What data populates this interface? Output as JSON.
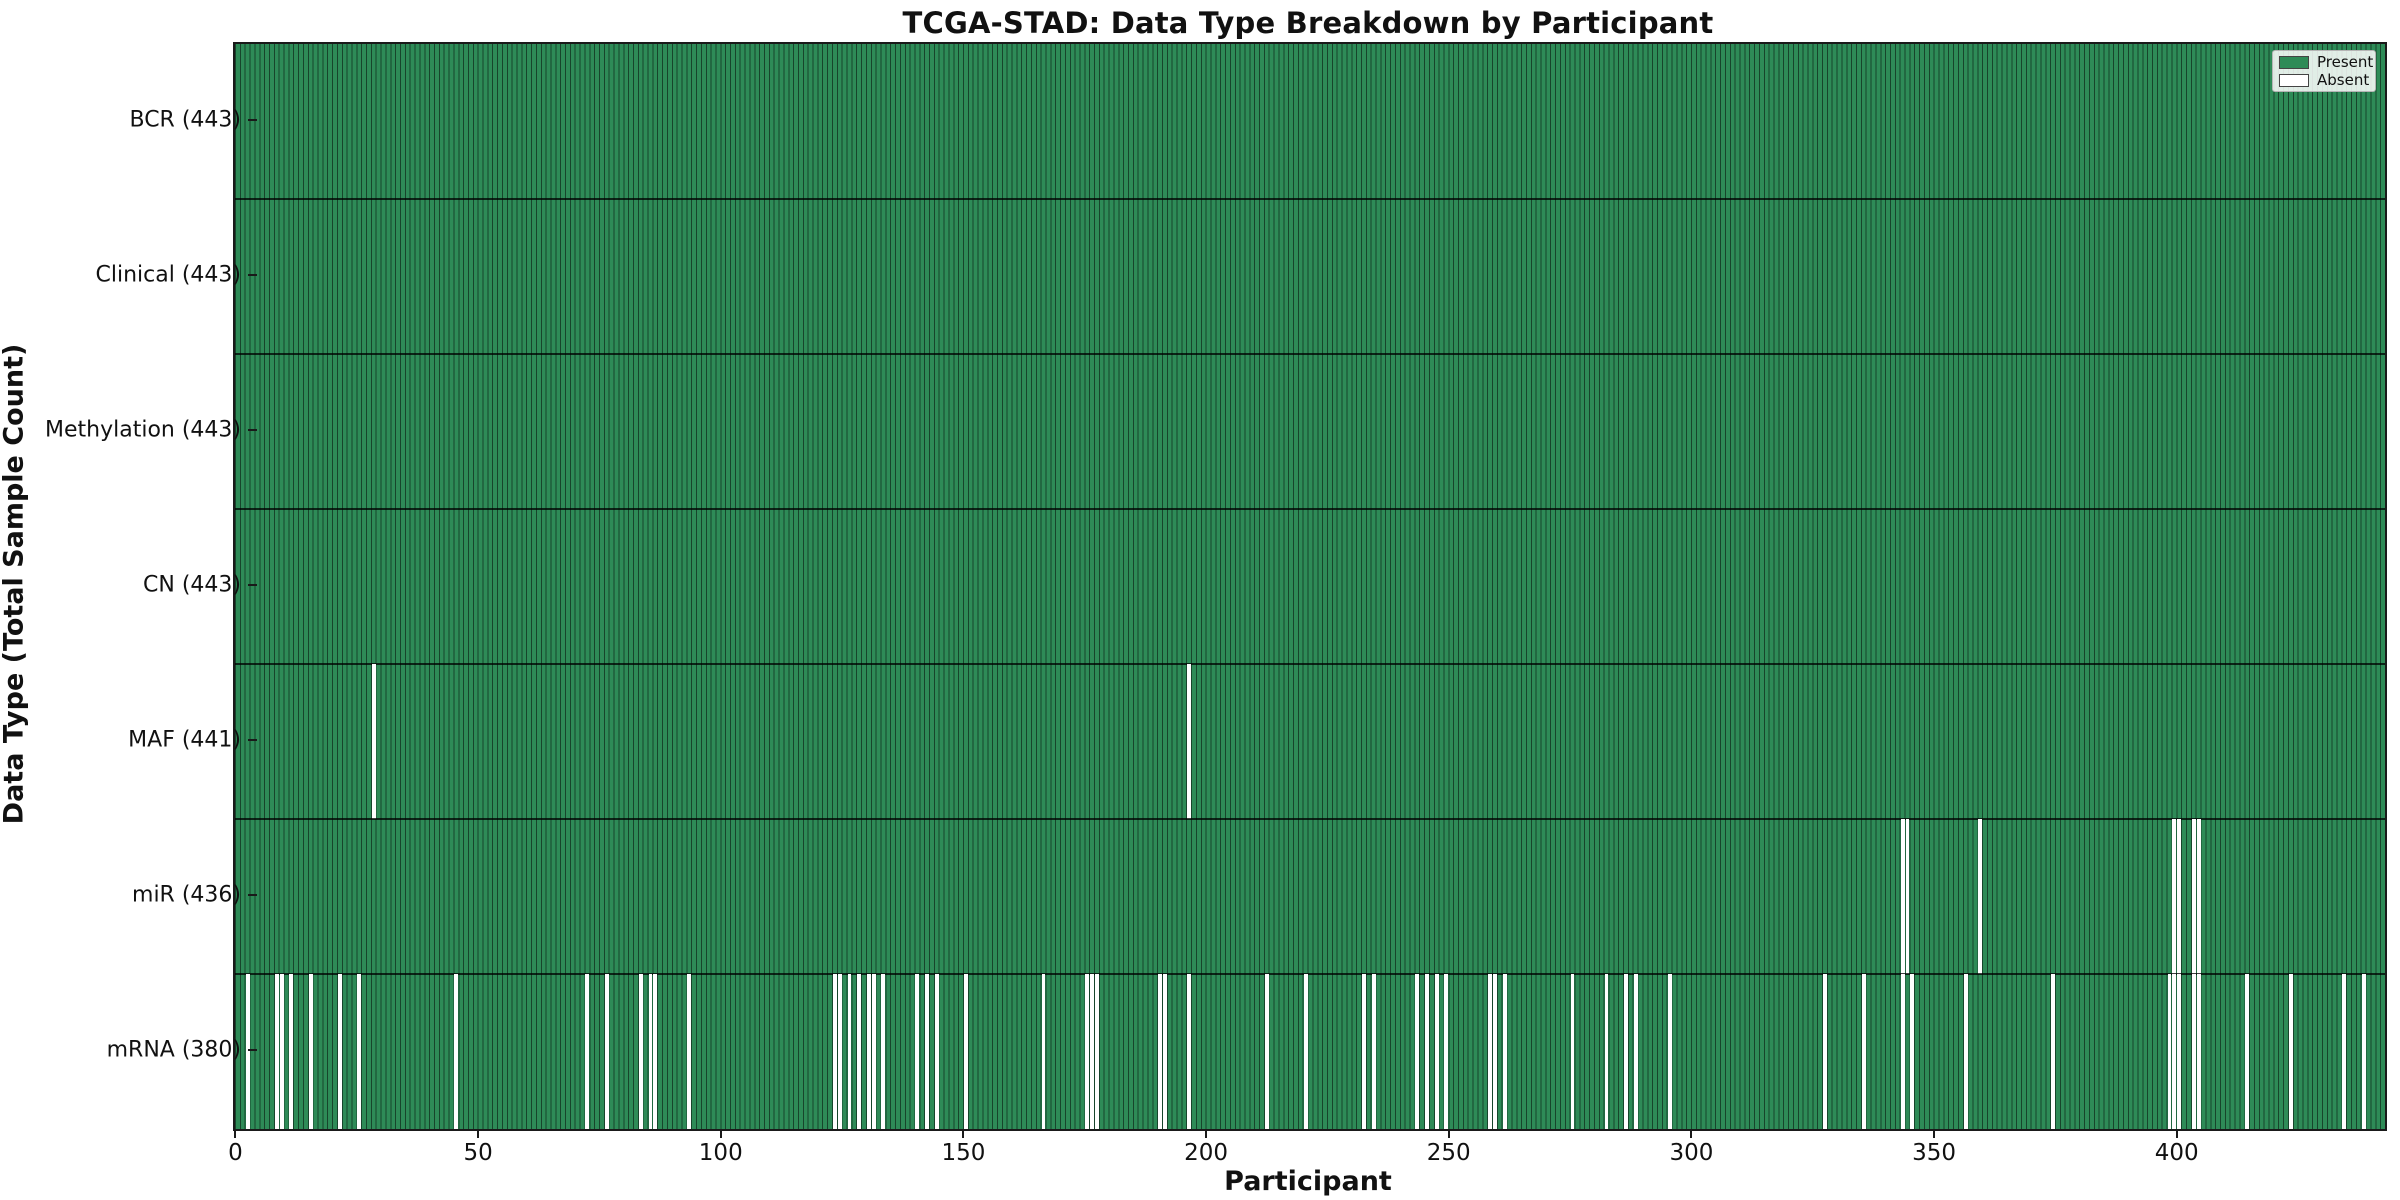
{
  "chart_data": {
    "type": "heatmap",
    "title": "TCGA-STAD: Data Type Breakdown by Participant",
    "xlabel": "Participant",
    "ylabel": "Data Type (Total Sample Count)",
    "n_participants": 443,
    "x_ticks": [
      0,
      50,
      100,
      150,
      200,
      250,
      300,
      350,
      400
    ],
    "grid": false,
    "legend": {
      "position": "upper right",
      "items": [
        {
          "label": "Present",
          "color": "#2e8b57"
        },
        {
          "label": "Absent",
          "color": "#ffffff"
        }
      ]
    },
    "colors": {
      "present": "#2e8b57",
      "absent": "#ffffff",
      "bar_edge": "rgba(0,0,0,0.5)"
    },
    "rows": [
      {
        "name": "BCR",
        "label": "BCR (443)",
        "count": 443,
        "absent": []
      },
      {
        "name": "Clinical",
        "label": "Clinical (443)",
        "count": 443,
        "absent": []
      },
      {
        "name": "Methylation",
        "label": "Methylation (443)",
        "count": 443,
        "absent": []
      },
      {
        "name": "CN",
        "label": "CN (443)",
        "count": 443,
        "absent": []
      },
      {
        "name": "MAF",
        "label": "MAF (441)",
        "count": 441,
        "absent": [
          28,
          196
        ]
      },
      {
        "name": "miR",
        "label": "miR (436)",
        "count": 436,
        "absent": [
          343,
          344,
          359,
          399,
          400,
          403,
          404
        ]
      },
      {
        "name": "mRNA",
        "label": "mRNA (380)",
        "count": 380,
        "absent": [
          2,
          8,
          9,
          11,
          15,
          21,
          25,
          45,
          72,
          76,
          83,
          85,
          86,
          93,
          123,
          124,
          126,
          128,
          130,
          131,
          133,
          140,
          142,
          144,
          150,
          166,
          175,
          176,
          177,
          190,
          191,
          196,
          212,
          220,
          232,
          234,
          243,
          245,
          247,
          249,
          258,
          259,
          261,
          275,
          282,
          286,
          288,
          295,
          327,
          335,
          343,
          345,
          356,
          374,
          398,
          399,
          400,
          403,
          404,
          414,
          423,
          434,
          438
        ]
      }
    ]
  }
}
